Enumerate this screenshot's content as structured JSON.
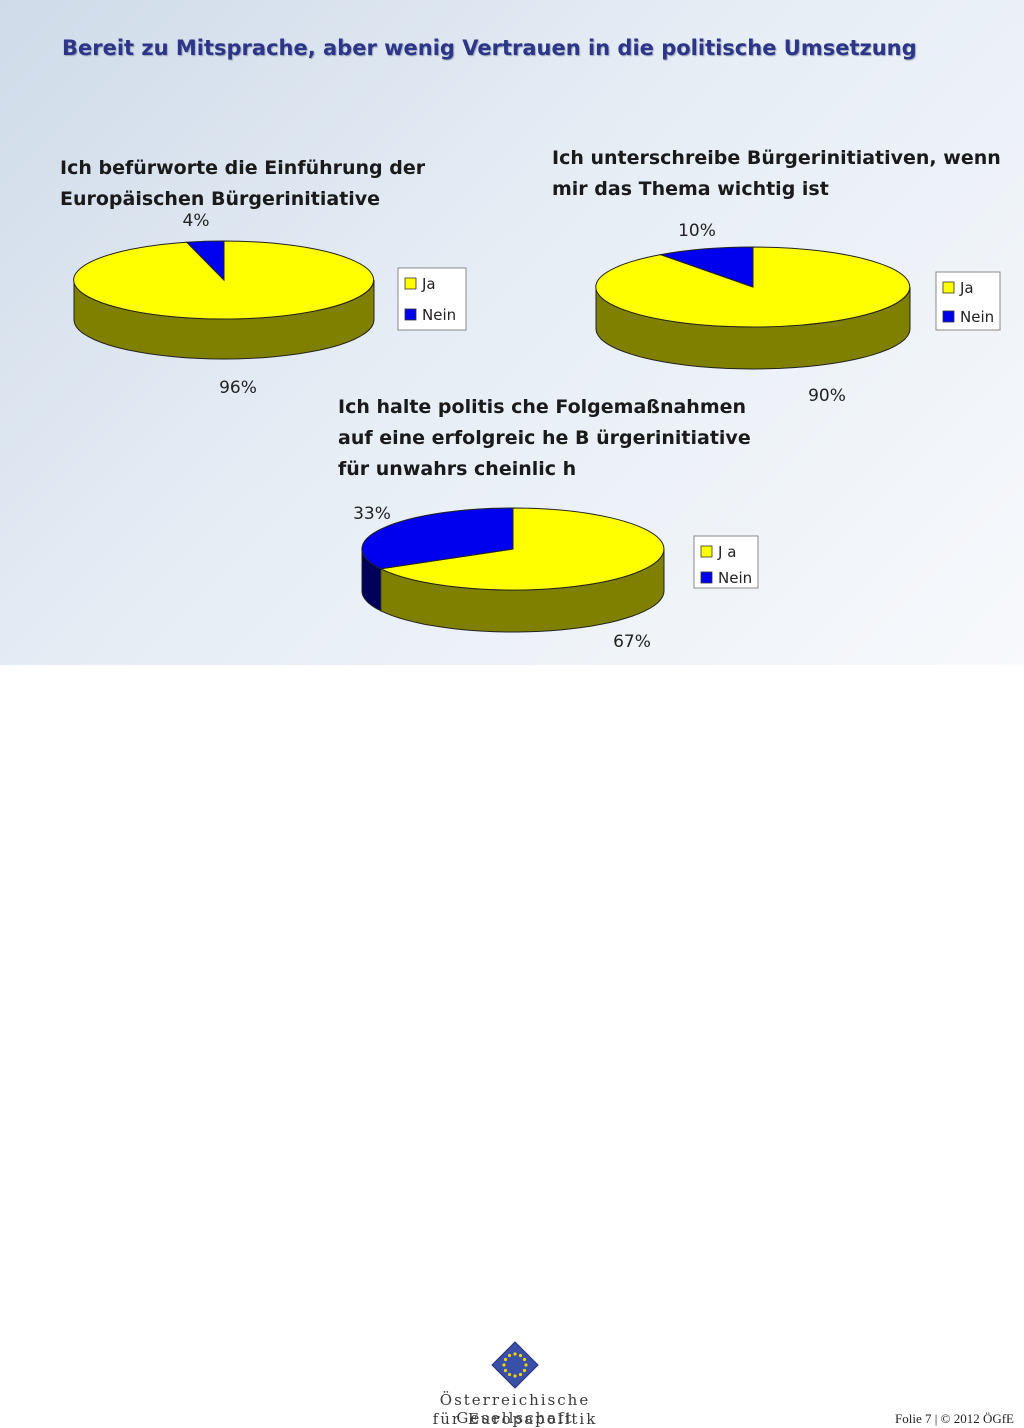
{
  "title": "Bereit zu Mitsprache, aber wenig Vertrauen in die politische Umsetzung",
  "colors": {
    "ja": "#ffff00",
    "ja_side": "#808000",
    "nein": "#0000ee",
    "nein_side": "#00005a",
    "title": "#2c3588"
  },
  "chart_data": [
    {
      "type": "pie",
      "title_lines": [
        "Ich befürworte die Einführung der",
        "Europäischen Bürgerinitiative"
      ],
      "categories": [
        "Ja",
        "Nein"
      ],
      "values": [
        96,
        4
      ],
      "labels": [
        "96%",
        "4%"
      ],
      "legend": [
        "Ja",
        "Nein"
      ],
      "legend_position": "right"
    },
    {
      "type": "pie",
      "title_lines": [
        "Ich unterschreibe Bürgerinitiativen, wenn",
        "mir das Thema wichtig ist"
      ],
      "categories": [
        "Ja",
        "Nein"
      ],
      "values": [
        90,
        10
      ],
      "labels": [
        "90%",
        "10%"
      ],
      "legend": [
        "Ja",
        "Nein"
      ],
      "legend_position": "right"
    },
    {
      "type": "pie",
      "title_lines": [
        "Ich halte politis che Folgemaßnahmen",
        "auf eine erfolgreic he B ürgerinitiative",
        "für unwahrs cheinlic h"
      ],
      "categories": [
        "Ja",
        "Nein"
      ],
      "values": [
        67,
        33
      ],
      "labels": [
        "67%",
        "33%"
      ],
      "legend": [
        "J a",
        "Nein"
      ],
      "legend_position": "right"
    }
  ],
  "footer": {
    "logo_icon": "eu-star-diamond-icon",
    "org_line1": "Österreichische Gesellschaft",
    "org_line2": "für Europapolitik",
    "folio": "Folie 7 | © 2012 ÖGfE"
  }
}
